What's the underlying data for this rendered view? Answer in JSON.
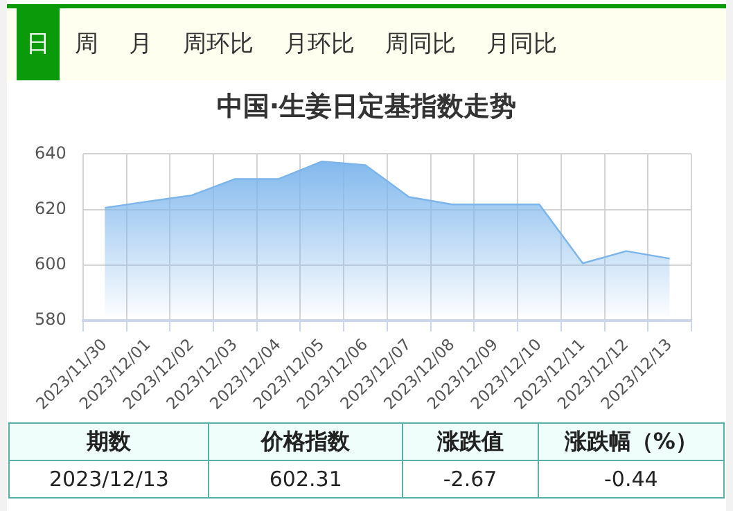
{
  "chart_data": {
    "type": "area",
    "title": "中国·生姜日定基指数走势",
    "categories": [
      "2023/11/30",
      "2023/12/01",
      "2023/12/02",
      "2023/12/03",
      "2023/12/04",
      "2023/12/05",
      "2023/12/06",
      "2023/12/07",
      "2023/12/08",
      "2023/12/09",
      "2023/12/10",
      "2023/12/11",
      "2023/12/12",
      "2023/12/13"
    ],
    "series": [
      {
        "color": "#7cb5ec",
        "values": [
          620.6,
          622.9,
          625.1,
          631,
          631,
          637.3,
          636,
          624.5,
          621.8,
          621.8,
          621.8,
          600.6,
          605,
          602.31
        ]
      }
    ],
    "ylim": [
      580,
      640
    ],
    "yticks": [
      580,
      600,
      620,
      640
    ],
    "grid": true,
    "legend": false,
    "marker": "none",
    "annotations": [
      "日",
      "周",
      "月",
      "周环比",
      "月环比",
      "周同比",
      "月同比",
      "期数",
      "价格指数",
      "涨跌值",
      "涨跌幅（%）",
      "2023/12/13",
      "602.31",
      "-2.67",
      "-0.44"
    ]
  }
}
